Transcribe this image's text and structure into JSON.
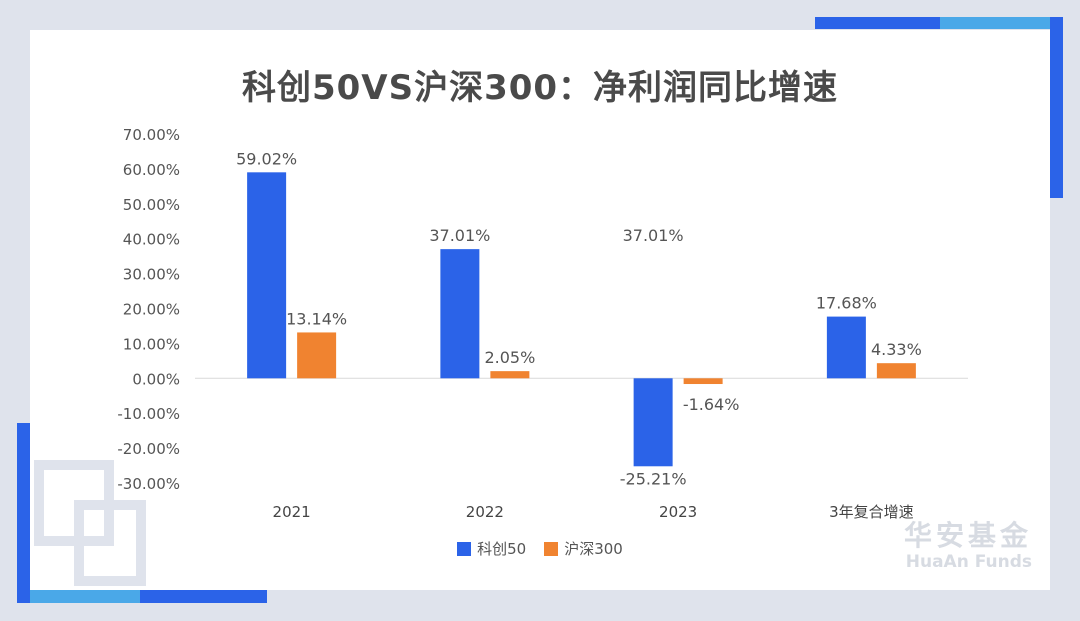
{
  "title": "科创50VS沪深300：净利润同比增速",
  "colors": {
    "series1": "#2b63e8",
    "series2": "#f08330",
    "accent_light": "#4aa8e8"
  },
  "brand": {
    "name_cn": "华安基金",
    "name_en": "HuaAn Funds"
  },
  "chart_data": {
    "type": "bar",
    "title": "科创50VS沪深300：净利润同比增速",
    "categories": [
      "2021",
      "2022",
      "2023",
      "3年复合增速"
    ],
    "series": [
      {
        "name": "科创50",
        "values": [
          59.02,
          37.01,
          -25.21,
          17.68
        ],
        "labels": [
          "59.02%",
          "37.01%",
          "-25.21%",
          "17.68%"
        ]
      },
      {
        "name": "沪深300",
        "values": [
          13.14,
          2.05,
          -1.64,
          4.33
        ],
        "labels": [
          "13.14%",
          "2.05%",
          "-1.64%",
          "4.33%"
        ]
      }
    ],
    "annotations": [
      {
        "text": "37.01%",
        "near": "2023"
      }
    ],
    "ylim": [
      -30,
      70
    ],
    "yticks": [
      "70.00%",
      "60.00%",
      "50.00%",
      "40.00%",
      "30.00%",
      "20.00%",
      "10.00%",
      "0.00%",
      "-10.00%",
      "-20.00%",
      "-30.00%"
    ],
    "grid": false,
    "legend": "bottom"
  }
}
